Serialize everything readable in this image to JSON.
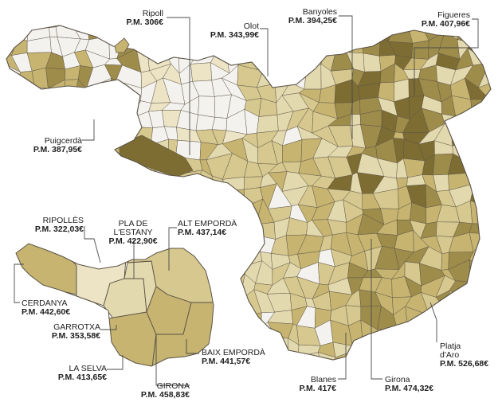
{
  "colors": {
    "light": "#ece4c4",
    "pale": "#e3d9af",
    "mid": "#d6c88e",
    "medium": "#c6b470",
    "dark": "#9e8c4a",
    "darker": "#7d6d33",
    "white_area": "#f4f2ee",
    "border": "#5a5246",
    "leader": "#4a4a4a"
  },
  "towns": [
    {
      "id": "ripoll",
      "name": "Ripoll",
      "price": "P.M. 306€"
    },
    {
      "id": "olot",
      "name": "Olot",
      "price": "P.M. 343,99€"
    },
    {
      "id": "banyoles",
      "name": "Banyoles",
      "price": "P.M. 394,25€"
    },
    {
      "id": "figueres",
      "name": "Figueres",
      "price": "P.M. 407,96€"
    },
    {
      "id": "puigcerda",
      "name": "Puigcerdà",
      "price": "P.M. 387,95€"
    },
    {
      "id": "platja",
      "name_1": "Platja",
      "name_2": "d'Aro",
      "price": "P.M. 526,68€"
    },
    {
      "id": "blanes",
      "name": "Blanes",
      "price": "P.M. 417€"
    },
    {
      "id": "girona",
      "name": "Girona",
      "price": "P.M. 474,32€"
    }
  ],
  "comarques": [
    {
      "id": "ripolles",
      "name": "RIPOLLÈS",
      "price": "P.M. 322,03€"
    },
    {
      "id": "pla",
      "name_1": "PLA DE",
      "name_2": "L'ESTANY",
      "price": "P.M. 422,90€"
    },
    {
      "id": "alt",
      "name": "ALT EMPORDÀ",
      "price": "P.M. 437,14€"
    },
    {
      "id": "cerdanya",
      "name": "CERDANYA",
      "price": "P.M. 442,60€"
    },
    {
      "id": "garrotxa",
      "name": "GARROTXA",
      "price": "P.M. 353,58€"
    },
    {
      "id": "baix",
      "name": "BAIX EMPORDÀ",
      "price": "P.M. 441,57€"
    },
    {
      "id": "selva",
      "name": "LA SELVA",
      "price": "P.M. 413,65€"
    },
    {
      "id": "girones",
      "name": "GIRONA",
      "price": "P.M. 458,83€"
    }
  ]
}
